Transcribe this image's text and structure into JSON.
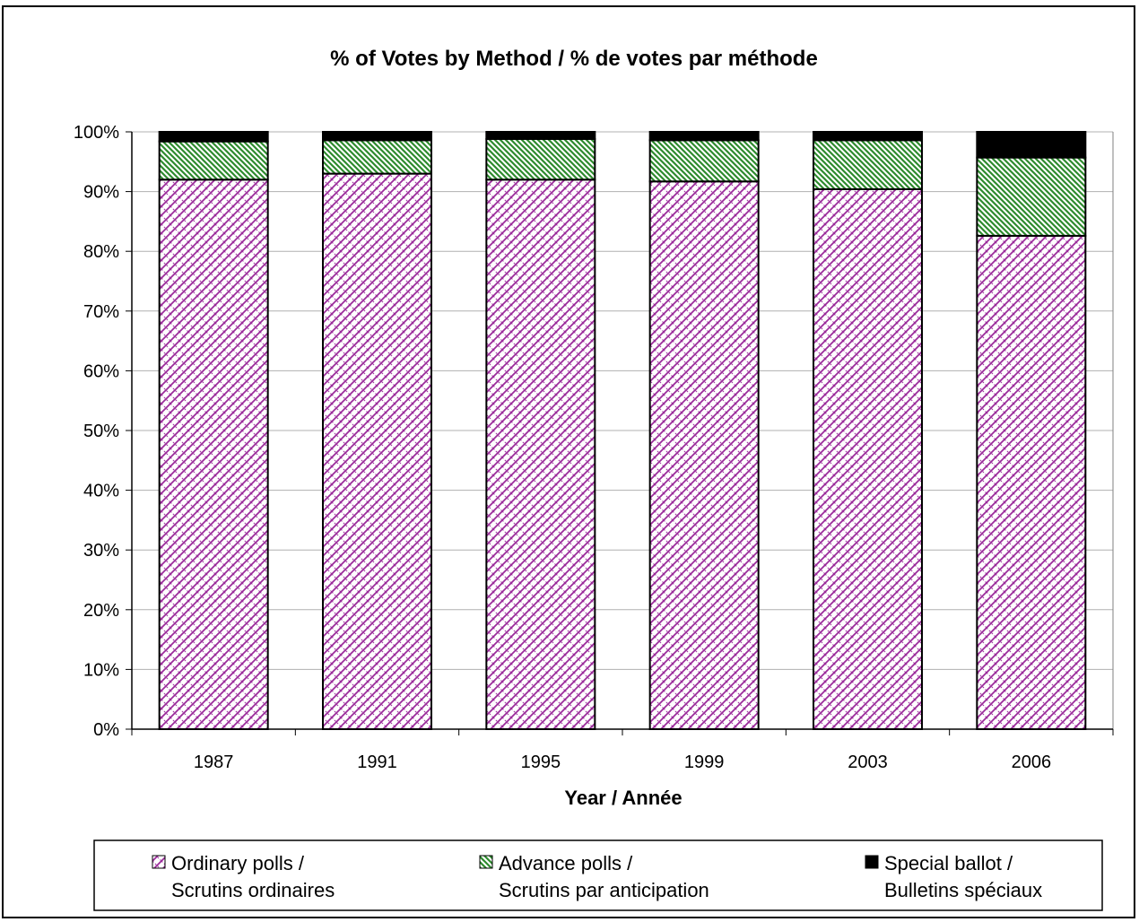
{
  "chart_data": {
    "type": "bar",
    "stacked": true,
    "title": "% of Votes by Method / % de votes par méthode",
    "xlabel": "Year / Année",
    "ylabel": "",
    "ylim": [
      0,
      100
    ],
    "yticks": [
      "0%",
      "10%",
      "20%",
      "30%",
      "40%",
      "50%",
      "60%",
      "70%",
      "80%",
      "90%",
      "100%"
    ],
    "categories": [
      "1987",
      "1991",
      "1995",
      "1999",
      "2003",
      "2006"
    ],
    "series": [
      {
        "name_line1": "Ordinary polls /",
        "name_line2": "Scrutins ordinaires",
        "pattern": "crosshatch",
        "color": "#9b2c9b",
        "values": [
          92.0,
          93.0,
          92.0,
          91.7,
          90.4,
          82.6
        ]
      },
      {
        "name_line1": "Advance polls /",
        "name_line2": "Scrutins par anticipation",
        "pattern": "diagonal",
        "color": "#2e8b2e",
        "values": [
          6.4,
          5.6,
          6.8,
          6.9,
          8.2,
          13.1
        ]
      },
      {
        "name_line1": "Special ballot /",
        "name_line2": "Bulletins spéciaux",
        "pattern": "solid",
        "color": "#000000",
        "values": [
          1.6,
          1.4,
          1.2,
          1.4,
          1.4,
          4.3
        ]
      }
    ],
    "grid": true,
    "legend_position": "bottom"
  }
}
